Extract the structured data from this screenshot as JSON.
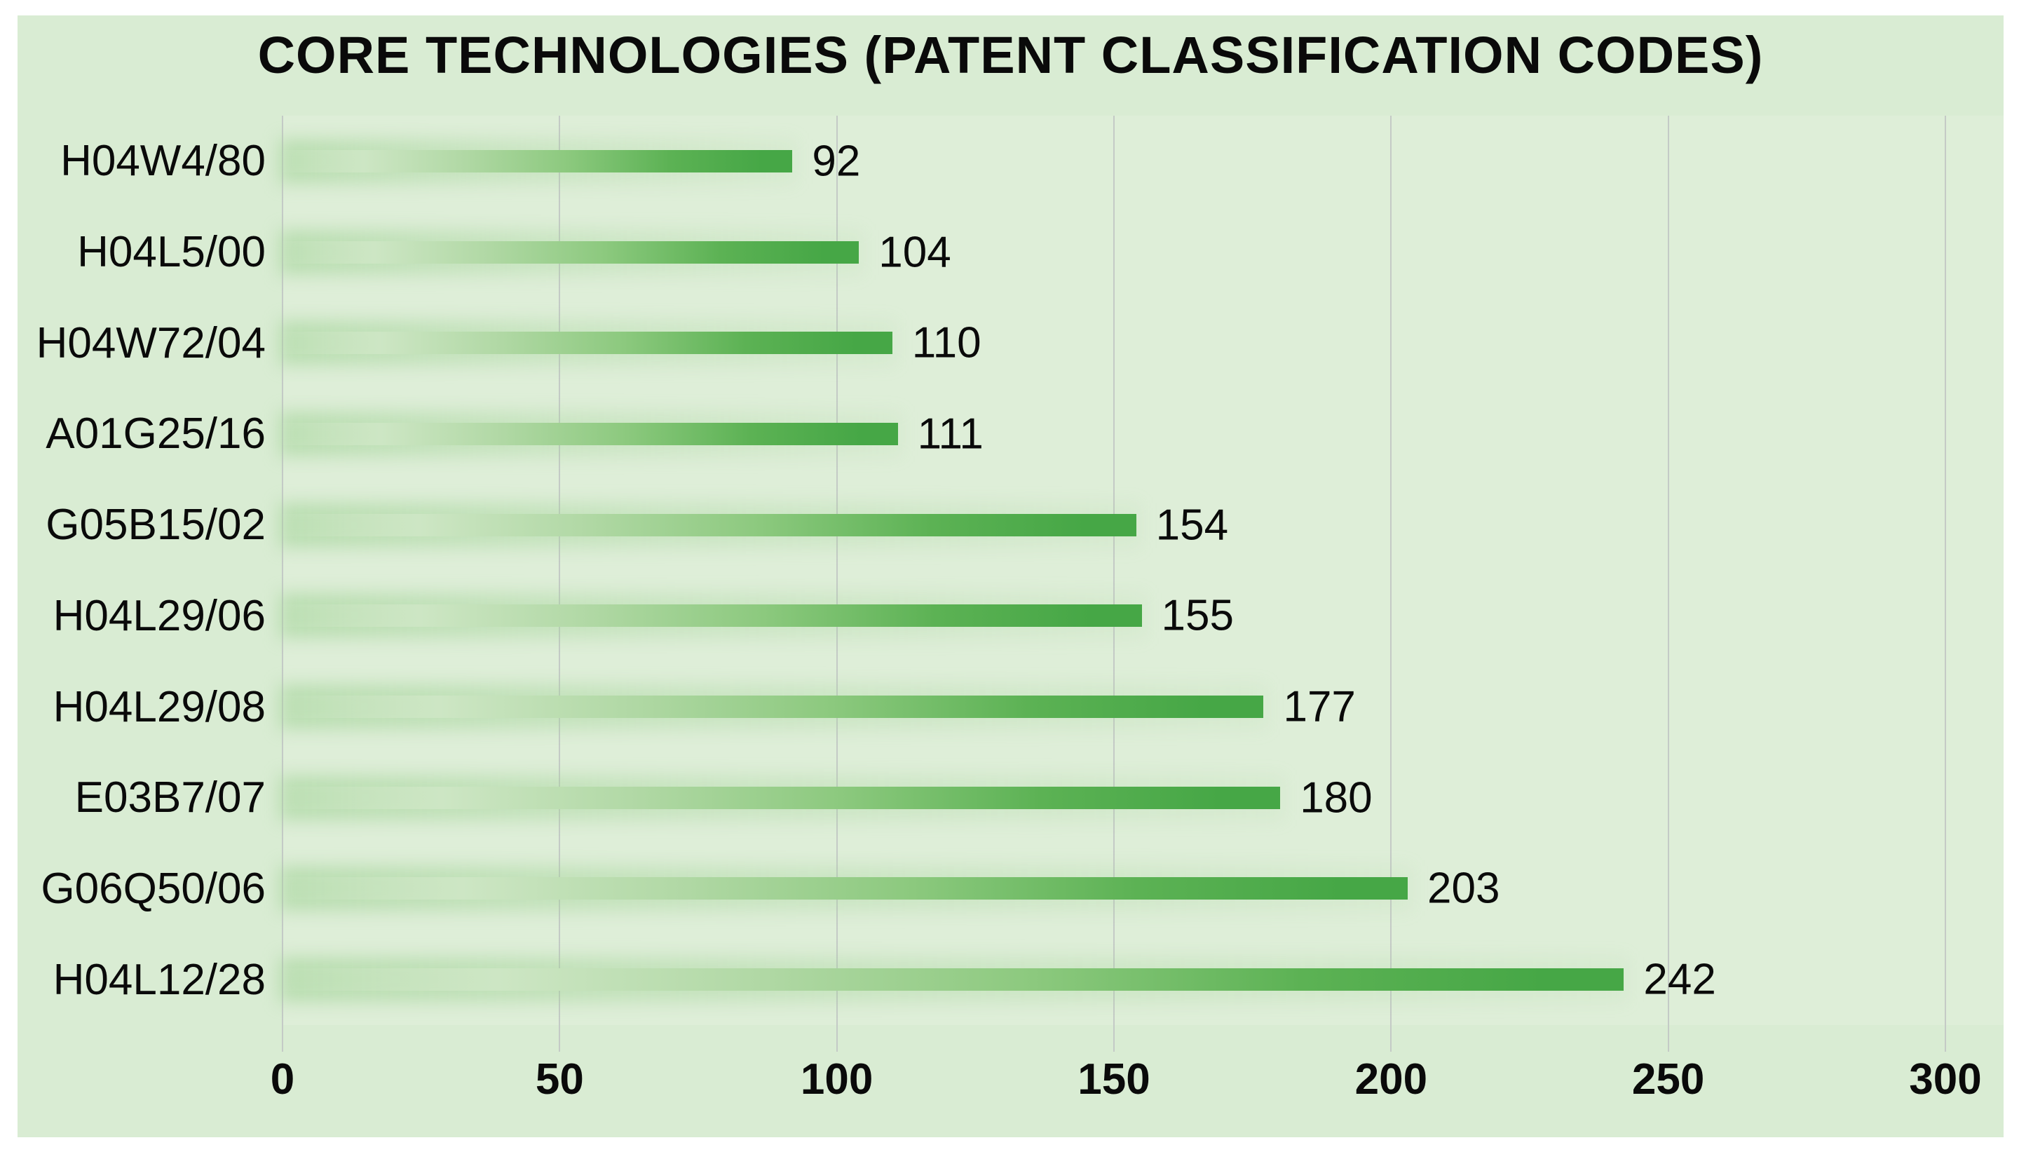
{
  "chart_data": {
    "type": "bar",
    "orientation": "horizontal",
    "title": "CORE TECHNOLOGIES (PATENT CLASSIFICATION CODES)",
    "categories": [
      "H04W4/80",
      "H04L5/00",
      "H04W72/04",
      "A01G25/16",
      "G05B15/02",
      "H04L29/06",
      "H04L29/08",
      "E03B7/07",
      "G06Q50/06",
      "H04L12/28"
    ],
    "values": [
      92,
      104,
      110,
      111,
      154,
      155,
      177,
      180,
      203,
      242
    ],
    "xlim": [
      0,
      300
    ],
    "x_ticks": [
      0,
      50,
      100,
      150,
      200,
      250,
      300
    ],
    "grid": "vertical-gridlines",
    "legend": "none",
    "value_labels": "end-of-bar",
    "colors": {
      "page_background": "#ffffff",
      "panel_background": "#d9ecd3",
      "plot_background": "#deeed8",
      "gridline": "#c4cac6",
      "bar_gradient_start": "#dceed6",
      "bar_gradient_end": "#46a746",
      "text": "#0a0a0a"
    }
  }
}
